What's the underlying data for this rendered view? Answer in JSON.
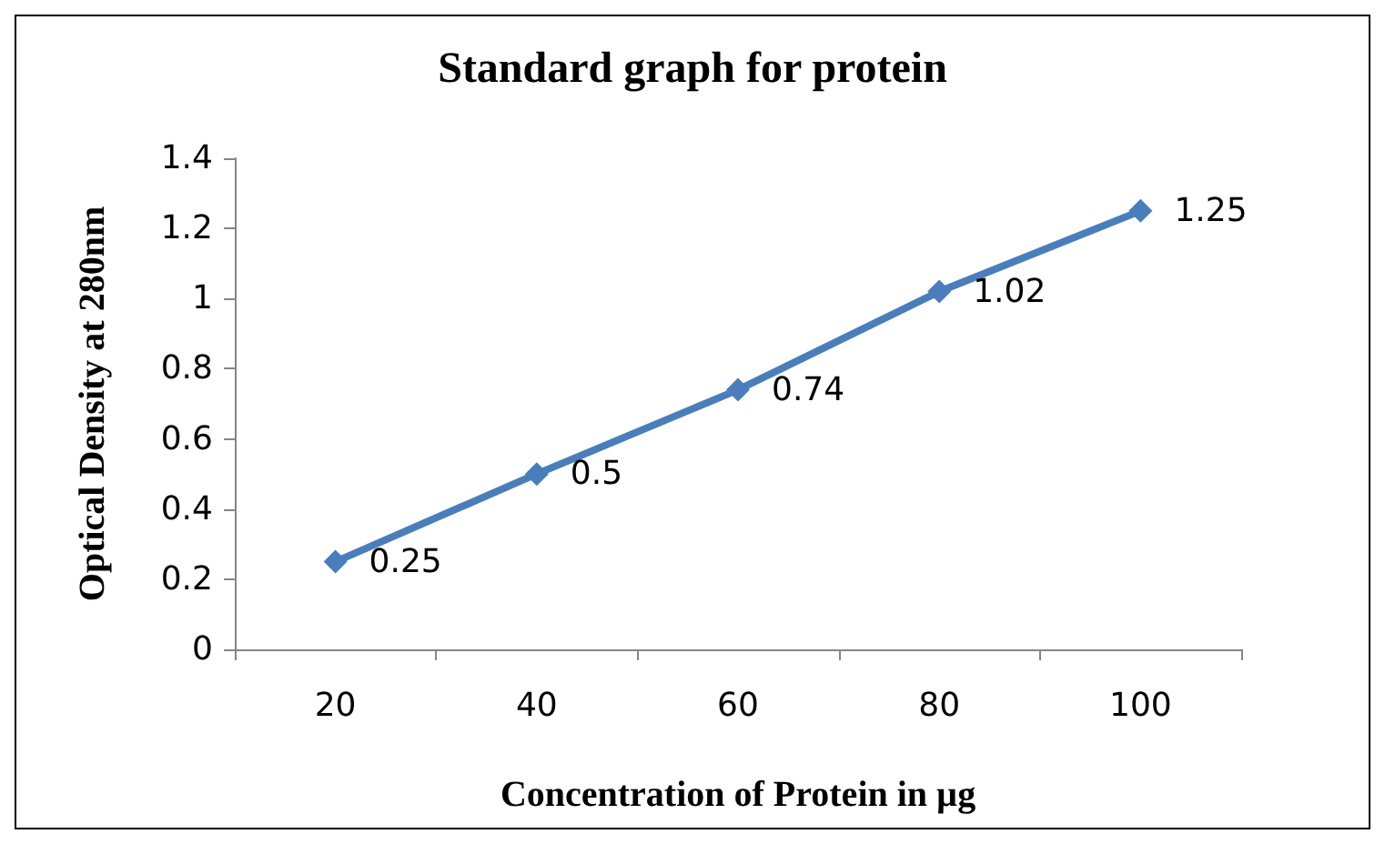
{
  "chart_data": {
    "type": "line",
    "title": "Standard graph for protein",
    "xlabel": "Concentration of Protein in µg",
    "ylabel": "Optical Density at 280nm",
    "categories": [
      "20",
      "40",
      "60",
      "80",
      "100"
    ],
    "series": [
      {
        "color": "#4a7ebb",
        "values": [
          0.25,
          0.5,
          0.74,
          1.02,
          1.25
        ]
      }
    ],
    "ylim": [
      0,
      1.4
    ],
    "yticks": [
      0,
      0.2,
      0.4,
      0.6,
      0.8,
      1,
      1.2,
      1.4
    ],
    "grid": false,
    "marker": "diamond",
    "line_style": "solid",
    "data_labels": true
  }
}
